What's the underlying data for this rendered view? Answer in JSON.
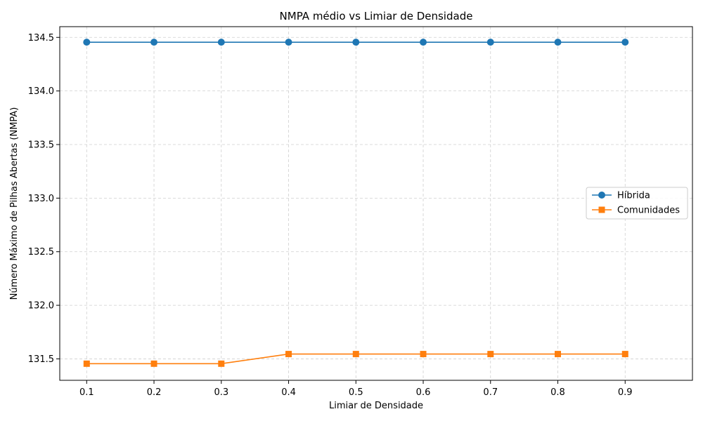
{
  "chart_data": {
    "type": "line",
    "title": "NMPA médio vs Limiar de Densidade",
    "xlabel": "Limiar de Densidade",
    "ylabel": "Número Máximo de Pilhas Abertas (NMPA)",
    "x": [
      0.1,
      0.2,
      0.3,
      0.4,
      0.5,
      0.6,
      0.7,
      0.8,
      0.9
    ],
    "x_tick_labels": [
      "0.1",
      "0.2",
      "0.3",
      "0.4",
      "0.5",
      "0.6",
      "0.7",
      "0.8",
      "0.9"
    ],
    "xlim": [
      0.06,
      1.0
    ],
    "ylim": [
      131.3,
      134.6
    ],
    "y_ticks": [
      131.5,
      132.0,
      132.5,
      133.0,
      133.5,
      134.0,
      134.5
    ],
    "y_tick_labels": [
      "131.5",
      "132.0",
      "132.5",
      "133.0",
      "133.5",
      "134.0",
      "134.5"
    ],
    "grid": true,
    "legend_position": "center-right",
    "series": [
      {
        "name": "Híbrida",
        "marker": "circle",
        "color": "#1f77b4",
        "values": [
          134.455,
          134.455,
          134.455,
          134.455,
          134.455,
          134.455,
          134.455,
          134.455,
          134.455
        ]
      },
      {
        "name": "Comunidades",
        "marker": "square",
        "color": "#ff7f0e",
        "values": [
          131.455,
          131.455,
          131.455,
          131.545,
          131.545,
          131.545,
          131.545,
          131.545,
          131.545
        ]
      }
    ]
  }
}
